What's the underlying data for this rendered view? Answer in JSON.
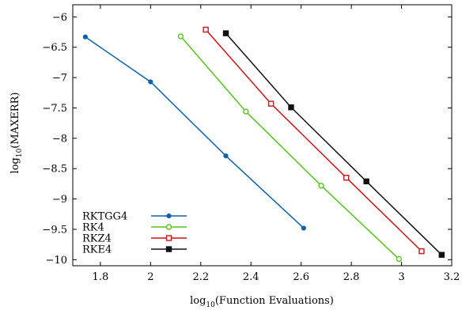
{
  "chart_data": {
    "type": "line",
    "xlabel": "log",
    "xlabel_sub": "10",
    "xlabel_rest": "(Function Evaluations)",
    "ylabel": "log",
    "ylabel_sub": "10",
    "ylabel_rest": "(MAXERR)",
    "xlim": [
      1.69,
      3.2
    ],
    "ylim": [
      -10.1,
      -5.8
    ],
    "xticks": [
      1.8,
      2,
      2.2,
      2.4,
      2.6,
      2.8,
      3,
      3.2
    ],
    "xtick_labels": [
      "1.8",
      "2",
      "2.2",
      "2.4",
      "2.6",
      "2.8",
      "3",
      "3.2"
    ],
    "yticks": [
      -6,
      -6.5,
      -7,
      -7.5,
      -8,
      -8.5,
      -9,
      -9.5,
      -10
    ],
    "ytick_labels": [
      "−6",
      "−6.5",
      "−7",
      "−7.5",
      "−8",
      "−8.5",
      "−9",
      "−9.5",
      "−10"
    ],
    "grid": false,
    "legend_position": "bottom-left",
    "series": [
      {
        "name": "RKTGG4",
        "color": "#0b63ad",
        "marker": "dot",
        "points": [
          [
            1.74,
            -6.33
          ],
          [
            2.0,
            -7.07
          ],
          [
            2.3,
            -8.29
          ],
          [
            2.61,
            -9.48
          ]
        ]
      },
      {
        "name": "RK4",
        "color": "#55c41d",
        "marker": "open-circle",
        "points": [
          [
            2.12,
            -6.32
          ],
          [
            2.38,
            -7.56
          ],
          [
            2.68,
            -8.78
          ],
          [
            2.99,
            -9.99
          ]
        ]
      },
      {
        "name": "RKZ4",
        "color": "#cc1414",
        "marker": "open-square",
        "points": [
          [
            2.22,
            -6.21
          ],
          [
            2.48,
            -7.43
          ],
          [
            2.78,
            -8.65
          ],
          [
            3.08,
            -9.86
          ]
        ]
      },
      {
        "name": "RKE4",
        "color": "#111111",
        "marker": "filled-square",
        "points": [
          [
            2.3,
            -6.27
          ],
          [
            2.56,
            -7.49
          ],
          [
            2.86,
            -8.71
          ],
          [
            3.16,
            -9.92
          ]
        ]
      }
    ]
  }
}
